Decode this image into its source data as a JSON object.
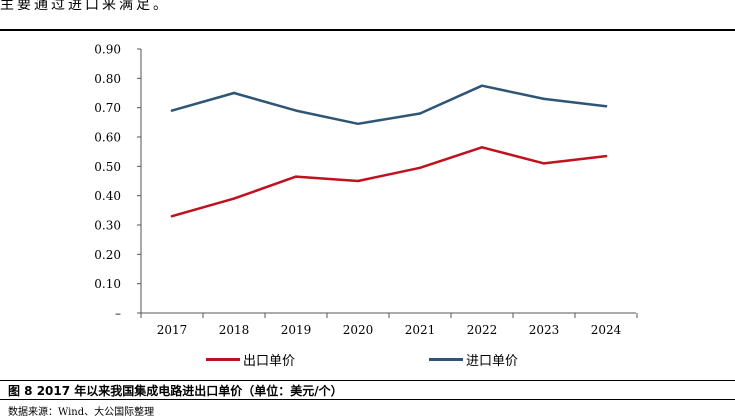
{
  "intro_text": "主要通过进口来满足。",
  "figure_caption": "图 8 2017 年以来我国集成电路进出口单价（单位：美元/个）",
  "source_note": "数据来源：Wind、大公国际整理",
  "colors": {
    "export": "#c0111f",
    "import": "#2f5576",
    "axis": "#555555"
  },
  "chart_data": {
    "type": "line",
    "categories": [
      "2017",
      "2018",
      "2019",
      "2020",
      "2021",
      "2022",
      "2023",
      "2024"
    ],
    "y_tick_labels": [
      "–",
      "0.10",
      "0.20",
      "0.30",
      "0.40",
      "0.50",
      "0.60",
      "0.70",
      "0.80",
      "0.90"
    ],
    "ylim": [
      0,
      0.9
    ],
    "grid": false,
    "legend_position": "bottom",
    "series": [
      {
        "name": "出口单价",
        "color": "#c0111f",
        "values": [
          0.33,
          0.39,
          0.465,
          0.45,
          0.495,
          0.565,
          0.51,
          0.535
        ]
      },
      {
        "name": "进口单价",
        "color": "#2f5576",
        "values": [
          0.69,
          0.75,
          0.69,
          0.645,
          0.68,
          0.775,
          0.73,
          0.705
        ]
      }
    ]
  }
}
